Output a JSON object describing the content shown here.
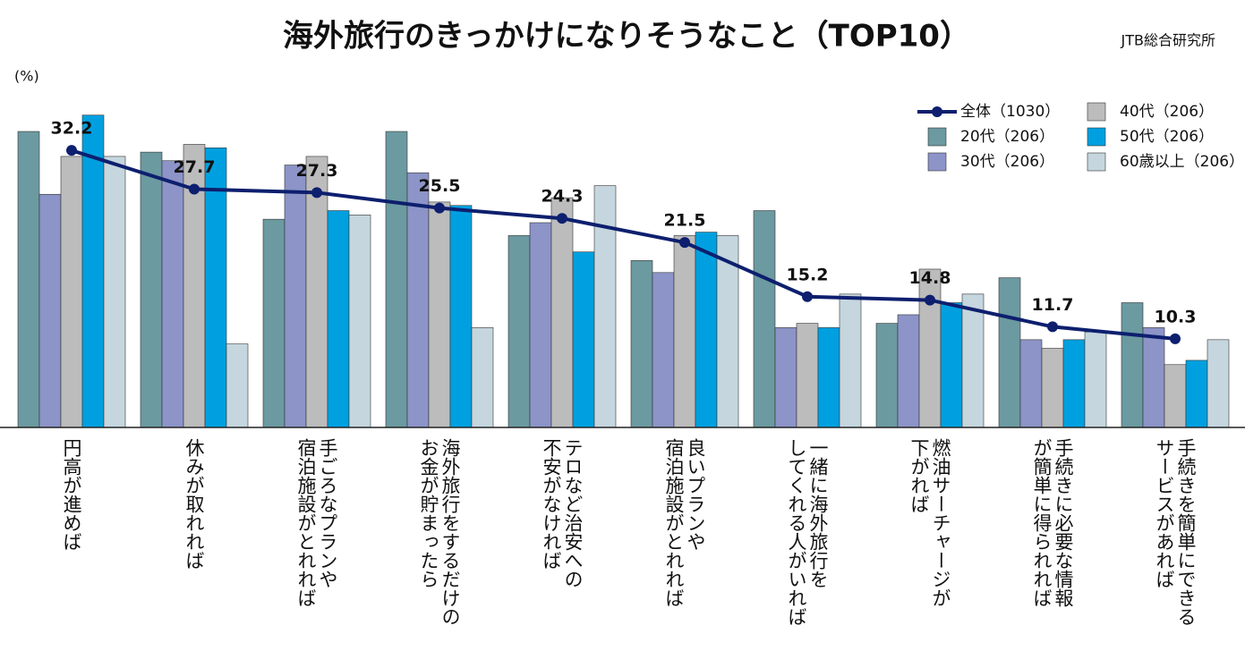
{
  "chart_data": {
    "type": "bar_line",
    "title": "海外旅行のきっかけになりそうなこと（TOP10）",
    "source": "JTB総合研究所",
    "y_label": "(%)",
    "categories": [
      [
        "円高が進めば"
      ],
      [
        "休みが取れれば"
      ],
      [
        "手ごろなプランや",
        "宿泊施設がとれれば"
      ],
      [
        "海外旅行をするだけの",
        "お金が貯まったら"
      ],
      [
        "テロなど治安への",
        "不安がなければ"
      ],
      [
        "良いプランや",
        "宿泊施設がとれれば"
      ],
      [
        "一緒に海外旅行を",
        "してくれる人がいれば"
      ],
      [
        "燃油サーチャージが",
        "下がれば"
      ],
      [
        "手続きに必要な情報",
        "が簡単に得られれば"
      ],
      [
        "手続きを簡単にできる",
        "サービスがあれば"
      ]
    ],
    "ylim": [
      0,
      37
    ],
    "series": [
      {
        "name": "全体（1030）",
        "type": "line",
        "color": "#0d1f6e",
        "values": [
          32.2,
          27.7,
          27.3,
          25.5,
          24.3,
          21.5,
          15.2,
          14.8,
          11.7,
          10.3
        ]
      },
      {
        "name": "20代（206）",
        "type": "bar",
        "color": "#6b9aa0",
        "values": [
          34.4,
          32.0,
          24.2,
          34.4,
          22.3,
          19.4,
          25.2,
          12.1,
          17.4,
          14.5
        ]
      },
      {
        "name": "30代（206）",
        "type": "bar",
        "color": "#8c94c8",
        "values": [
          27.1,
          31.0,
          30.5,
          29.6,
          23.8,
          18.0,
          11.6,
          13.1,
          10.2,
          11.6
        ]
      },
      {
        "name": "40代（206）",
        "type": "bar",
        "color": "#bcbcbc",
        "values": [
          31.5,
          32.9,
          31.5,
          26.2,
          26.7,
          22.3,
          12.1,
          18.4,
          9.2,
          7.3
        ]
      },
      {
        "name": "50代（206）",
        "type": "bar",
        "color": "#00a0e0",
        "values": [
          36.3,
          32.5,
          25.2,
          25.8,
          20.4,
          22.7,
          11.6,
          14.5,
          10.2,
          7.8
        ]
      },
      {
        "name": "60歳以上（206）",
        "type": "bar",
        "color": "#c5d6de",
        "values": [
          31.5,
          9.7,
          24.7,
          11.6,
          28.1,
          22.3,
          15.5,
          15.5,
          11.1,
          10.2
        ]
      }
    ]
  }
}
